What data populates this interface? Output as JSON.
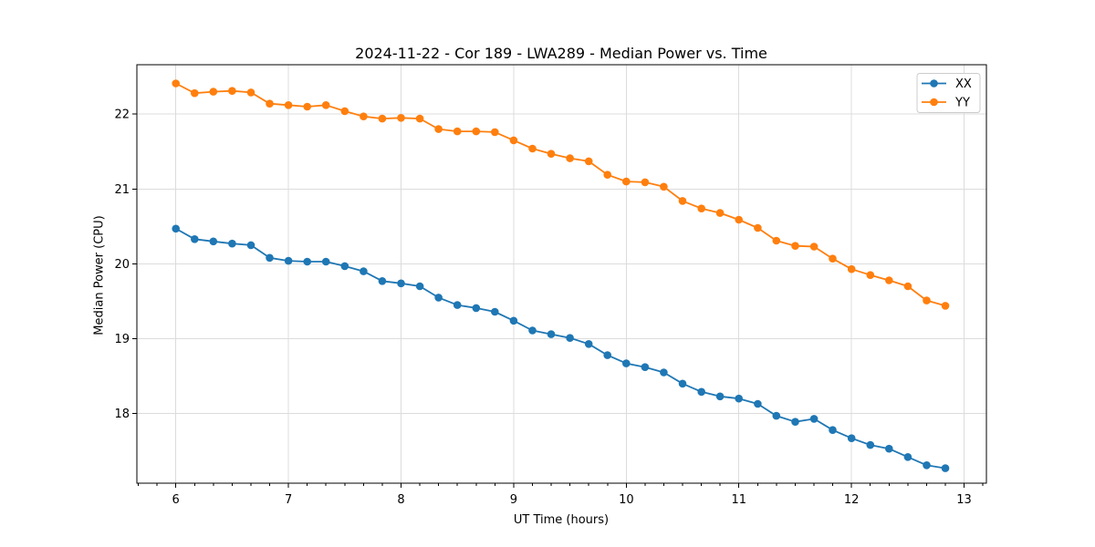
{
  "figure": {
    "title": "2024-11-22 - Cor 189 - LWA289 - Median Power vs. Time"
  },
  "chart_data": {
    "type": "line",
    "title": "2024-11-22 - Cor 189 - LWA289 - Median Power vs. Time",
    "xlabel": "UT Time (hours)",
    "ylabel": "Median Power (CPU)",
    "xlim": [
      5.654,
      13.198
    ],
    "ylim": [
      17.07,
      22.66
    ],
    "xticks": [
      6,
      7,
      8,
      9,
      10,
      11,
      12,
      13
    ],
    "yticks": [
      18,
      19,
      20,
      21,
      22
    ],
    "x_minor_tick_step": 0.1667,
    "grid": true,
    "grid_color": "#dcdcdc",
    "spine_color": "#000000",
    "legend_position": "upper right",
    "x": [
      6.0,
      6.167,
      6.333,
      6.5,
      6.667,
      6.833,
      7.0,
      7.167,
      7.333,
      7.5,
      7.667,
      7.833,
      8.0,
      8.167,
      8.333,
      8.5,
      8.667,
      8.833,
      9.0,
      9.167,
      9.333,
      9.5,
      9.667,
      9.833,
      10.0,
      10.167,
      10.333,
      10.5,
      10.667,
      10.833,
      11.0,
      11.167,
      11.333,
      11.5,
      11.667,
      11.833,
      12.0,
      12.167,
      12.333,
      12.5,
      12.667,
      12.833
    ],
    "series": [
      {
        "name": "XX",
        "color": "#1f77b4",
        "values": [
          20.47,
          20.33,
          20.3,
          20.27,
          20.25,
          20.08,
          20.04,
          20.03,
          20.03,
          19.97,
          19.9,
          19.77,
          19.74,
          19.7,
          19.55,
          19.45,
          19.41,
          19.36,
          19.24,
          19.11,
          19.06,
          19.01,
          18.93,
          18.78,
          18.67,
          18.62,
          18.55,
          18.4,
          18.29,
          18.23,
          18.2,
          18.13,
          17.97,
          17.89,
          17.93,
          17.78,
          17.67,
          17.58,
          17.53,
          17.42,
          17.31,
          17.27
        ]
      },
      {
        "name": "YY",
        "color": "#ff7f0e",
        "values": [
          22.41,
          22.28,
          22.3,
          22.31,
          22.29,
          22.14,
          22.12,
          22.1,
          22.12,
          22.04,
          21.97,
          21.94,
          21.95,
          21.94,
          21.8,
          21.77,
          21.77,
          21.76,
          21.65,
          21.54,
          21.47,
          21.41,
          21.37,
          21.19,
          21.1,
          21.09,
          21.03,
          20.84,
          20.74,
          20.68,
          20.59,
          20.48,
          20.31,
          20.24,
          20.23,
          20.07,
          19.93,
          19.85,
          19.78,
          19.7,
          19.51,
          19.44
        ]
      }
    ]
  }
}
